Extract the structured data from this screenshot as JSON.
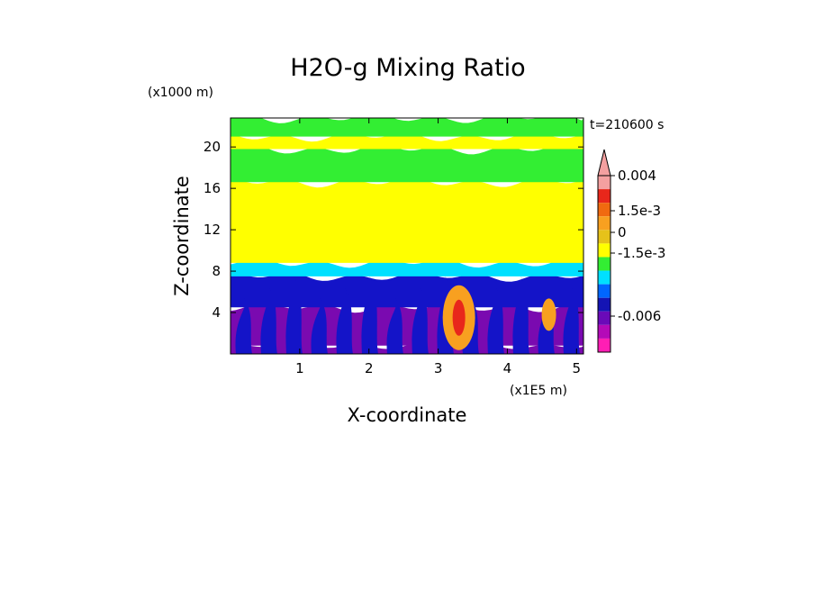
{
  "chart_data": {
    "type": "heatmap",
    "title": "H2O-g Mixing Ratio",
    "xlabel": "X-coordinate",
    "ylabel": "Z-coordinate",
    "x_unit": "(x1E5 m)",
    "y_unit": "(x1000 m)",
    "time_label": "t=210600 s",
    "xlim": [
      0,
      5.1
    ],
    "ylim": [
      0,
      22.8
    ],
    "x_ticks": [
      1,
      2,
      3,
      4,
      5
    ],
    "y_ticks": [
      4,
      8,
      12,
      16,
      20
    ],
    "x_tick_labels": [
      "1",
      "2",
      "3",
      "4",
      "5"
    ],
    "y_tick_labels": [
      "4",
      "8",
      "12",
      "16",
      "20"
    ],
    "colorbar": {
      "tick_labels": [
        "0.004",
        "1.5e-3",
        "0",
        "-1.5e-3",
        "-0.006"
      ],
      "colors_top_to_bottom": [
        "#f4a0a0",
        "#e8271b",
        "#f06a10",
        "#f8a020",
        "#e6c21a",
        "#ffff00",
        "#33ee33",
        "#00e0ff",
        "#0066ff",
        "#1414b4",
        "#6a0ab8",
        "#b40ab8",
        "#ff1eb4"
      ]
    },
    "bands": [
      {
        "zmin": 0.0,
        "zmax": 0.8,
        "color": "#7a0ab0"
      },
      {
        "zmin": 0.8,
        "zmax": 4.5,
        "color": "#7a0ab0"
      },
      {
        "zmin": 4.5,
        "zmax": 7.5,
        "color": "#1414c8"
      },
      {
        "zmin": 7.5,
        "zmax": 8.8,
        "color": "#00e0ff"
      },
      {
        "zmin": 8.8,
        "zmax": 16.6,
        "color": "#ffff00"
      },
      {
        "zmin": 16.6,
        "zmax": 19.8,
        "color": "#33ee33"
      },
      {
        "zmin": 19.8,
        "zmax": 21.0,
        "color": "#ffff00"
      },
      {
        "zmin": 21.0,
        "zmax": 22.8,
        "color": "#33ee33"
      }
    ]
  }
}
